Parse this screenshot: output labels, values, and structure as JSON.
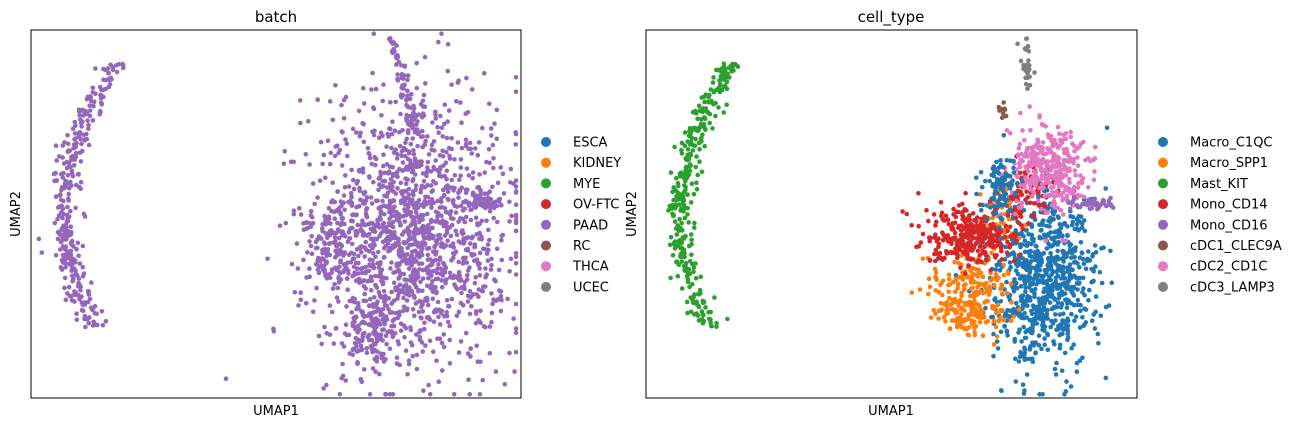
{
  "chart_data": [
    {
      "type": "scatter",
      "title": "batch",
      "xlabel": "UMAP1",
      "ylabel": "UMAP2",
      "xticks": [],
      "yticks": [],
      "legend_position": "right",
      "legend": [
        {
          "name": "ESCA",
          "color": "#1f77b4"
        },
        {
          "name": "KIDNEY",
          "color": "#ff7f0e"
        },
        {
          "name": "MYE",
          "color": "#2ca02c"
        },
        {
          "name": "OV-FTC",
          "color": "#d62728"
        },
        {
          "name": "PAAD",
          "color": "#9467bd"
        },
        {
          "name": "RC",
          "color": "#8c564b"
        },
        {
          "name": "THCA",
          "color": "#e377c2"
        },
        {
          "name": "UCEC",
          "color": "#7f7f7f"
        }
      ],
      "clusters": [
        {
          "series": "PAAD",
          "shape": "arc",
          "n": 330,
          "cx": 0.1,
          "cy": 0.45,
          "rx": 0.03,
          "ry": 0.36,
          "bend": 0.08
        },
        {
          "series": "PAAD",
          "shape": "blob",
          "n": 1500,
          "cx": 0.78,
          "cy": 0.56,
          "rx": 0.18,
          "ry": 0.32
        },
        {
          "series": "PAAD",
          "shape": "blob",
          "n": 140,
          "cx": 0.62,
          "cy": 0.58,
          "rx": 0.06,
          "ry": 0.1
        },
        {
          "series": "PAAD",
          "shape": "blob",
          "n": 130,
          "cx": 0.69,
          "cy": 0.82,
          "rx": 0.05,
          "ry": 0.08
        },
        {
          "series": "PAAD",
          "shape": "line",
          "n": 70,
          "cx": 0.76,
          "cy": 0.15,
          "rx": 0.04,
          "ry": 0.13
        },
        {
          "series": "PAAD",
          "shape": "blob",
          "n": 40,
          "cx": 0.92,
          "cy": 0.47,
          "rx": 0.05,
          "ry": 0.015
        }
      ]
    },
    {
      "type": "scatter",
      "title": "cell_type",
      "xlabel": "UMAP1",
      "ylabel": "UMAP2",
      "xticks": [],
      "yticks": [],
      "legend_position": "right",
      "legend": [
        {
          "name": "Macro_C1QC",
          "color": "#1f77b4"
        },
        {
          "name": "Macro_SPP1",
          "color": "#ff7f0e"
        },
        {
          "name": "Mast_KIT",
          "color": "#2ca02c"
        },
        {
          "name": "Mono_CD14",
          "color": "#d62728"
        },
        {
          "name": "Mono_CD16",
          "color": "#9467bd"
        },
        {
          "name": "cDC1_CLEC9A",
          "color": "#8c564b"
        },
        {
          "name": "cDC2_CD1C",
          "color": "#e377c2"
        },
        {
          "name": "cDC3_LAMP3",
          "color": "#7f7f7f"
        }
      ],
      "clusters": [
        {
          "series": "Mast_KIT",
          "shape": "arc",
          "n": 330,
          "cx": 0.1,
          "cy": 0.45,
          "rx": 0.03,
          "ry": 0.36,
          "bend": 0.08
        },
        {
          "series": "Macro_C1QC",
          "shape": "blob",
          "n": 800,
          "cx": 0.81,
          "cy": 0.68,
          "rx": 0.1,
          "ry": 0.22
        },
        {
          "series": "Macro_SPP1",
          "shape": "blob",
          "n": 260,
          "cx": 0.66,
          "cy": 0.73,
          "rx": 0.07,
          "ry": 0.1
        },
        {
          "series": "Macro_SPP1",
          "shape": "blob",
          "n": 60,
          "cx": 0.72,
          "cy": 0.52,
          "rx": 0.04,
          "ry": 0.1
        },
        {
          "series": "Mono_CD14",
          "shape": "blob",
          "n": 300,
          "cx": 0.66,
          "cy": 0.56,
          "rx": 0.08,
          "ry": 0.07
        },
        {
          "series": "Mono_CD14",
          "shape": "blob",
          "n": 70,
          "cx": 0.77,
          "cy": 0.44,
          "rx": 0.05,
          "ry": 0.08
        },
        {
          "series": "cDC2_CD1C",
          "shape": "blob",
          "n": 320,
          "cx": 0.82,
          "cy": 0.38,
          "rx": 0.07,
          "ry": 0.11
        },
        {
          "series": "Macro_C1QC",
          "shape": "blob",
          "n": 90,
          "cx": 0.72,
          "cy": 0.42,
          "rx": 0.03,
          "ry": 0.08
        },
        {
          "series": "Mono_CD16",
          "shape": "blob",
          "n": 40,
          "cx": 0.92,
          "cy": 0.47,
          "rx": 0.05,
          "ry": 0.015
        },
        {
          "series": "cDC1_CLEC9A",
          "shape": "blob",
          "n": 10,
          "cx": 0.725,
          "cy": 0.22,
          "rx": 0.008,
          "ry": 0.02
        },
        {
          "series": "cDC3_LAMP3",
          "shape": "line",
          "n": 30,
          "cx": 0.775,
          "cy": 0.09,
          "rx": 0.01,
          "ry": 0.07
        }
      ]
    }
  ]
}
